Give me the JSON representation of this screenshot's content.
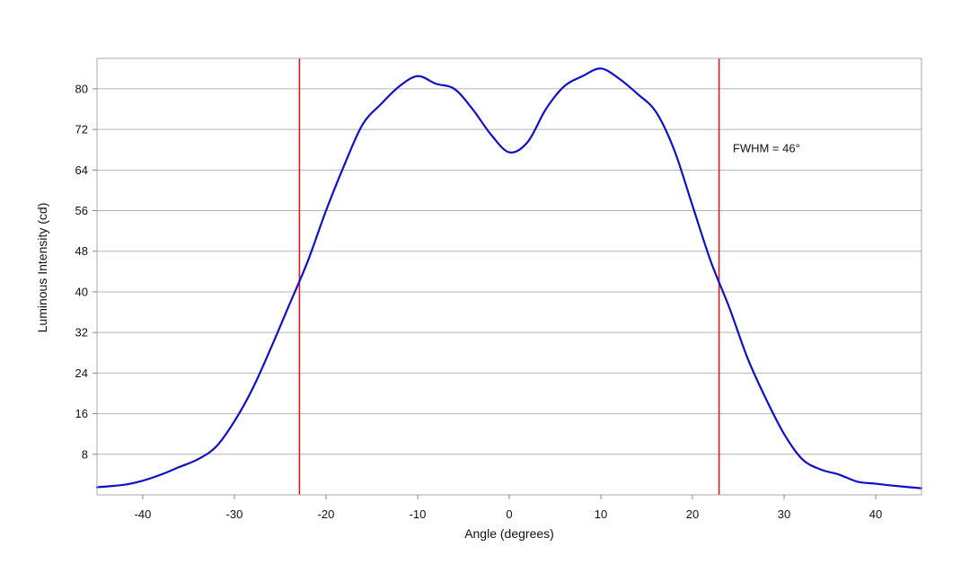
{
  "chart_data": {
    "type": "line",
    "title": "",
    "xlabel": "Angle (degrees)",
    "ylabel": "Luminous Intensity (cd)",
    "xlim": [
      -45,
      45
    ],
    "ylim": [
      0,
      86
    ],
    "grid": "horizontal",
    "x_ticks": [
      -40,
      -30,
      -20,
      -10,
      0,
      10,
      20,
      30,
      40
    ],
    "y_ticks": [
      8,
      16,
      24,
      32,
      40,
      48,
      56,
      64,
      72,
      80
    ],
    "series": [
      {
        "color": "#1010c8",
        "x": [
          -45,
          -42,
          -40,
          -38,
          -36,
          -34,
          -32,
          -30,
          -28,
          -26,
          -24,
          -22,
          -20,
          -18,
          -16,
          -14,
          -12,
          -10,
          -8,
          -6,
          -4,
          -2,
          0,
          2,
          4,
          6,
          8,
          10,
          12,
          14,
          16,
          18,
          20,
          22,
          24,
          26,
          28,
          30,
          32,
          34,
          36,
          38,
          40,
          42,
          45
        ],
        "y": [
          1.5,
          2,
          2.8,
          4,
          5.5,
          7,
          9.5,
          14.5,
          21,
          29,
          37.5,
          46,
          56,
          65,
          73,
          77,
          80.5,
          82.5,
          81,
          80,
          76,
          71,
          67.5,
          69.5,
          76,
          80.5,
          82.5,
          84,
          82,
          79,
          75.5,
          68,
          57,
          46,
          37,
          27,
          19,
          12,
          7,
          5,
          4,
          2.6,
          2.2,
          1.8,
          1.3
        ]
      }
    ],
    "vlines": [
      {
        "x": -22.9,
        "color": "#d81c1c"
      },
      {
        "x": 22.9,
        "color": "#d81c1c"
      }
    ],
    "annotation": {
      "text": "FWHM = 46°",
      "x": 24.4,
      "y": 68
    }
  }
}
